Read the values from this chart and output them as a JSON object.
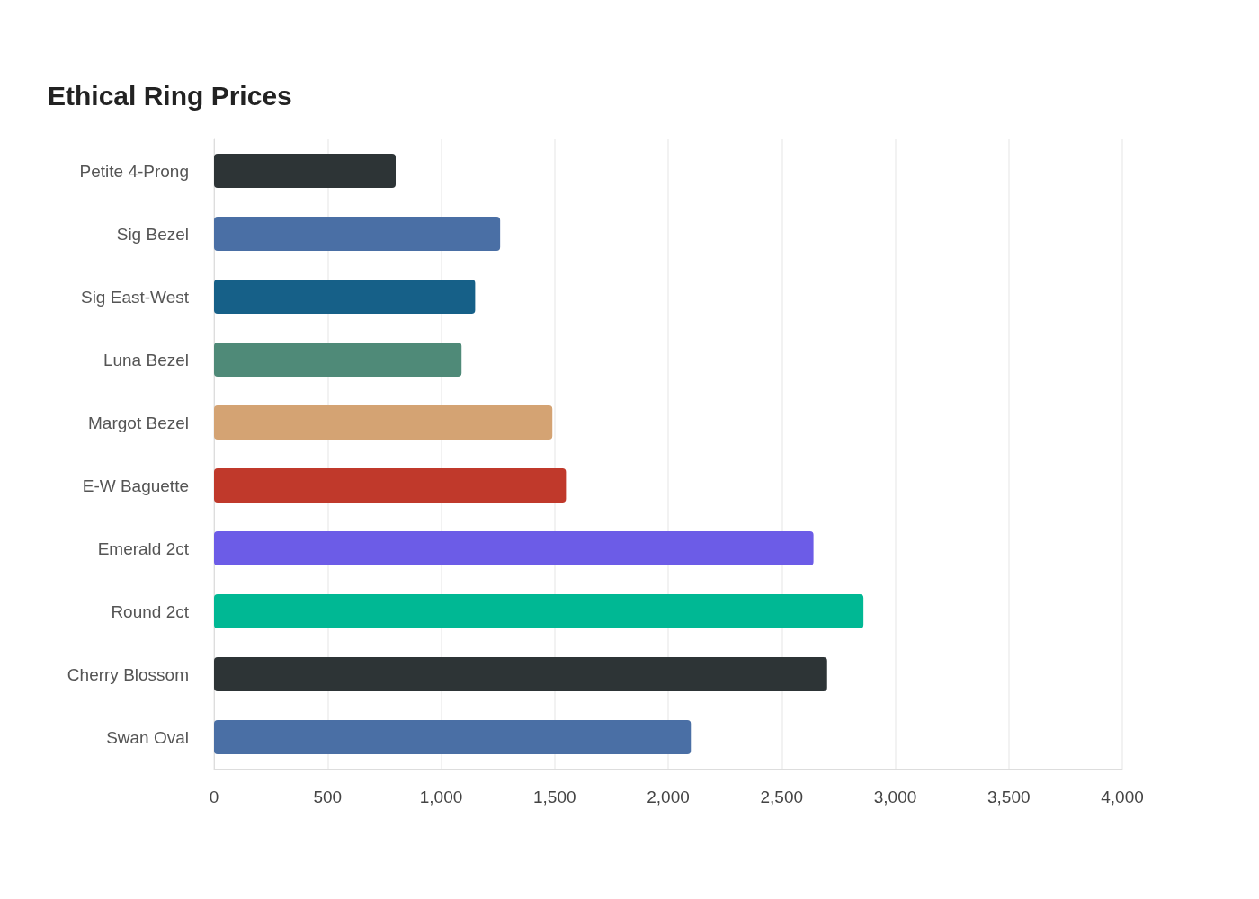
{
  "chart_data": {
    "type": "bar",
    "title": "Ethical Ring Prices",
    "orientation": "horizontal",
    "categories": [
      "Petite 4-Prong",
      "Sig Bezel",
      "Sig East-West",
      "Luna Bezel",
      "Margot Bezel",
      "E-W Baguette",
      "Emerald 2ct",
      "Round 2ct",
      "Cherry Blossom",
      "Swan Oval"
    ],
    "values": [
      800,
      1260,
      1150,
      1090,
      1490,
      1550,
      2640,
      2860,
      2700,
      2100
    ],
    "colors": [
      "#2d3436",
      "#4a6fa5",
      "#166088",
      "#4f8a78",
      "#d4a373",
      "#c0392b",
      "#6c5ce7",
      "#00b894",
      "#2d3436",
      "#4a6fa5"
    ],
    "xlim": [
      0,
      4000
    ],
    "xticks": [
      0,
      500,
      {
        "value": 1000,
        "label": "1,000"
      },
      {
        "value": 1500,
        "label": "1,500"
      },
      {
        "value": 2000,
        "label": "2,000"
      },
      {
        "value": 2500,
        "label": "2,500"
      },
      {
        "value": 3000,
        "label": "3,000"
      },
      {
        "value": 3500,
        "label": "3,500"
      },
      {
        "value": 4000,
        "label": "4,000"
      }
    ],
    "grid": "x"
  }
}
